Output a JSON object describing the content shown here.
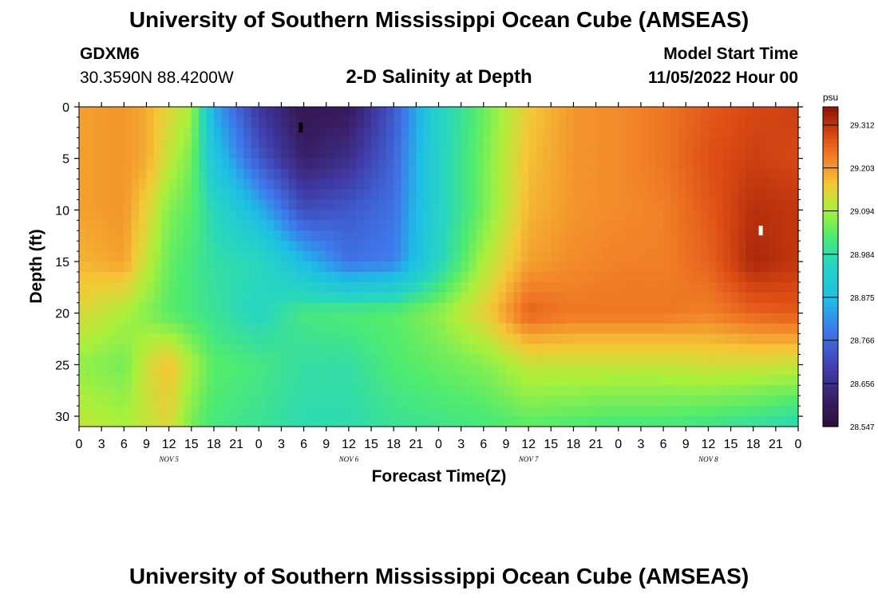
{
  "header": {
    "title": "University of Southern Mississippi Ocean Cube (AMSEAS)",
    "station_id": "GDXM6",
    "station_coords": "30.3590N  88.4200W",
    "subtitle": "2-D Salinity at Depth",
    "model_start_label": "Model Start Time",
    "model_start_value": "11/05/2022 Hour 00"
  },
  "footer": {
    "title": "University of Southern Mississippi Ocean Cube (AMSEAS)"
  },
  "chart_data": {
    "type": "heatmap",
    "title": "2-D Salinity at Depth",
    "xlabel": "Forecast Time(Z)",
    "ylabel": "Depth (ft)",
    "x_tick_labels": [
      "0",
      "3",
      "6",
      "9",
      "12",
      "15",
      "18",
      "21",
      "0",
      "3",
      "6",
      "9",
      "12",
      "15",
      "18",
      "21",
      "0",
      "3",
      "6",
      "9",
      "12",
      "15",
      "18",
      "21",
      "0",
      "3",
      "6",
      "9",
      "12",
      "15",
      "18",
      "21",
      "0"
    ],
    "date_labels": [
      "NOV 5",
      "NOV 6",
      "NOV 7",
      "NOV 8"
    ],
    "x_range_hours": [
      0,
      96
    ],
    "y_ticks": [
      0,
      5,
      10,
      15,
      20,
      25,
      30
    ],
    "y_tick_labels": [
      "0",
      "5",
      "10",
      "15",
      "20",
      "25",
      "30"
    ],
    "y_range": [
      0,
      31
    ],
    "y_inverted": true,
    "colorbar": {
      "unit": "psu",
      "min": 28.547,
      "max": 29.358,
      "tick_labels": [
        "29.312",
        "29.203",
        "29.094",
        "28.984",
        "28.875",
        "28.766",
        "28.656",
        "28.547"
      ],
      "tick_values": [
        29.312,
        29.203,
        29.094,
        28.984,
        28.875,
        28.766,
        28.656,
        28.547
      ]
    },
    "depths_ft": [
      0,
      5,
      10,
      15,
      20,
      25,
      31
    ],
    "times_h": [
      0,
      6,
      9,
      12,
      15,
      18,
      24,
      30,
      36,
      42,
      48,
      54,
      60,
      66,
      72,
      78,
      84,
      90,
      96
    ],
    "salinity_psu": [
      [
        29.2,
        29.21,
        29.19,
        29.14,
        29.1,
        28.85,
        28.68,
        28.59,
        28.6,
        28.74,
        28.95,
        29.05,
        29.16,
        29.21,
        29.22,
        29.24,
        29.27,
        29.29,
        29.3
      ],
      [
        29.2,
        29.21,
        29.19,
        29.12,
        29.06,
        28.9,
        28.74,
        28.62,
        28.66,
        28.76,
        28.95,
        29.06,
        29.17,
        29.21,
        29.22,
        29.24,
        29.28,
        29.3,
        29.29
      ],
      [
        29.2,
        29.21,
        29.15,
        29.07,
        29.04,
        28.97,
        28.86,
        28.72,
        28.74,
        28.78,
        28.95,
        29.06,
        29.18,
        29.21,
        29.22,
        29.23,
        29.27,
        29.32,
        29.31
      ],
      [
        29.18,
        29.2,
        29.12,
        29.05,
        29.02,
        28.99,
        28.97,
        28.87,
        28.78,
        28.8,
        28.96,
        29.1,
        29.2,
        29.22,
        29.23,
        29.23,
        29.26,
        29.33,
        29.31
      ],
      [
        29.14,
        29.1,
        29.07,
        29.04,
        29.02,
        29.0,
        28.96,
        29.02,
        29.03,
        29.04,
        29.08,
        29.15,
        29.26,
        29.24,
        29.24,
        29.24,
        29.23,
        29.26,
        29.27
      ],
      [
        29.08,
        29.06,
        29.13,
        29.17,
        29.1,
        29.04,
        29.02,
        28.99,
        28.99,
        29.03,
        29.05,
        29.07,
        29.12,
        29.12,
        29.12,
        29.12,
        29.13,
        29.13,
        29.12
      ],
      [
        29.12,
        29.1,
        29.12,
        29.14,
        29.06,
        29.02,
        29.0,
        28.98,
        28.98,
        29.0,
        29.01,
        29.02,
        29.04,
        29.03,
        29.02,
        29.02,
        29.01,
        28.99,
        28.97
      ]
    ],
    "markers": [
      {
        "time_h": 29.6,
        "depth_ft": 2.0,
        "color": "#000000"
      },
      {
        "time_h": 91.0,
        "depth_ft": 12.0,
        "color": "#ffffff"
      }
    ]
  }
}
